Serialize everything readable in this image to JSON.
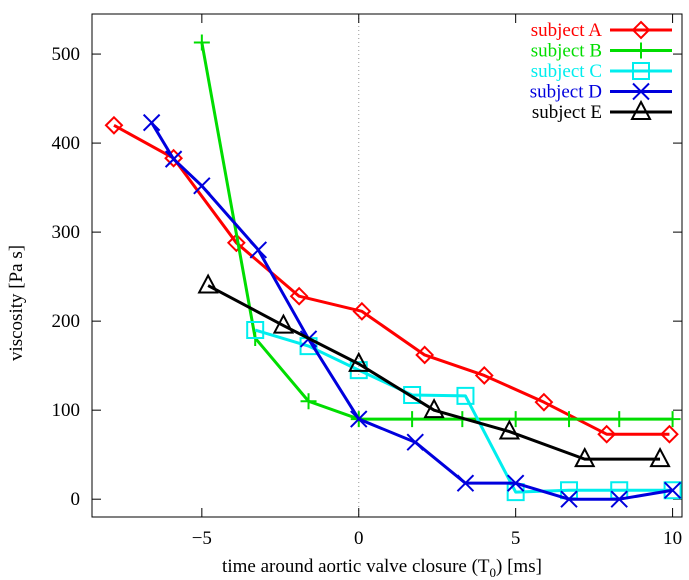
{
  "chart_data": {
    "type": "line",
    "title": "",
    "xlabel": "time around aortic valve closure (T",
    "xlabel_sub": "0",
    "xlabel_tail": ") [ms]",
    "ylabel": "viscosity [Pa s]",
    "xlim": [
      -8.5,
      10.3
    ],
    "ylim": [
      -20,
      545
    ],
    "xticks": [
      -5,
      0,
      5,
      10
    ],
    "xtick_labels": [
      "−5",
      "0",
      "5",
      "10"
    ],
    "yticks": [
      0,
      100,
      200,
      300,
      400,
      500
    ],
    "ytick_labels": [
      "0",
      "100",
      "200",
      "300",
      "400",
      "500"
    ],
    "grid": false,
    "reference_line": {
      "x": 0,
      "style": "dotted"
    },
    "legend_position": "top-right",
    "series": [
      {
        "name": "subject A",
        "color": "#ff0000",
        "marker": "diamond",
        "x": [
          -7.8,
          -5.9,
          -3.9,
          -1.9,
          0.1,
          2.1,
          4.0,
          5.9,
          7.9,
          9.9
        ],
        "y": [
          420,
          383,
          288,
          228,
          211,
          162,
          139,
          109,
          73,
          73
        ]
      },
      {
        "name": "subject B",
        "color": "#00dd00",
        "marker": "plus",
        "x": [
          -5.0,
          -3.3,
          -1.6,
          0.0,
          1.7,
          3.3,
          5.0,
          6.7,
          8.3,
          10.0
        ],
        "y": [
          513,
          181,
          110,
          90,
          90,
          90,
          90,
          90,
          90,
          90
        ]
      },
      {
        "name": "subject C",
        "color": "#00eeee",
        "marker": "square",
        "x": [
          -3.3,
          -1.6,
          0.0,
          1.7,
          3.4,
          5.0,
          6.7,
          8.3,
          10.0
        ],
        "y": [
          190,
          172,
          145,
          117,
          116,
          8,
          10,
          10,
          10
        ]
      },
      {
        "name": "subject D",
        "color": "#0000dd",
        "marker": "x",
        "x": [
          -6.6,
          -5.9,
          -5.0,
          -3.2,
          -1.6,
          0.0,
          1.8,
          3.4,
          5.0,
          6.7,
          8.3,
          10.0
        ],
        "y": [
          423,
          382,
          352,
          280,
          180,
          90,
          64,
          18,
          18,
          0,
          0,
          10
        ]
      },
      {
        "name": "subject E",
        "color": "#000000",
        "marker": "triangle",
        "x": [
          -4.8,
          -2.4,
          0.0,
          2.4,
          4.8,
          7.2,
          9.6
        ],
        "y": [
          240,
          195,
          152,
          100,
          76,
          45,
          45
        ]
      }
    ]
  }
}
